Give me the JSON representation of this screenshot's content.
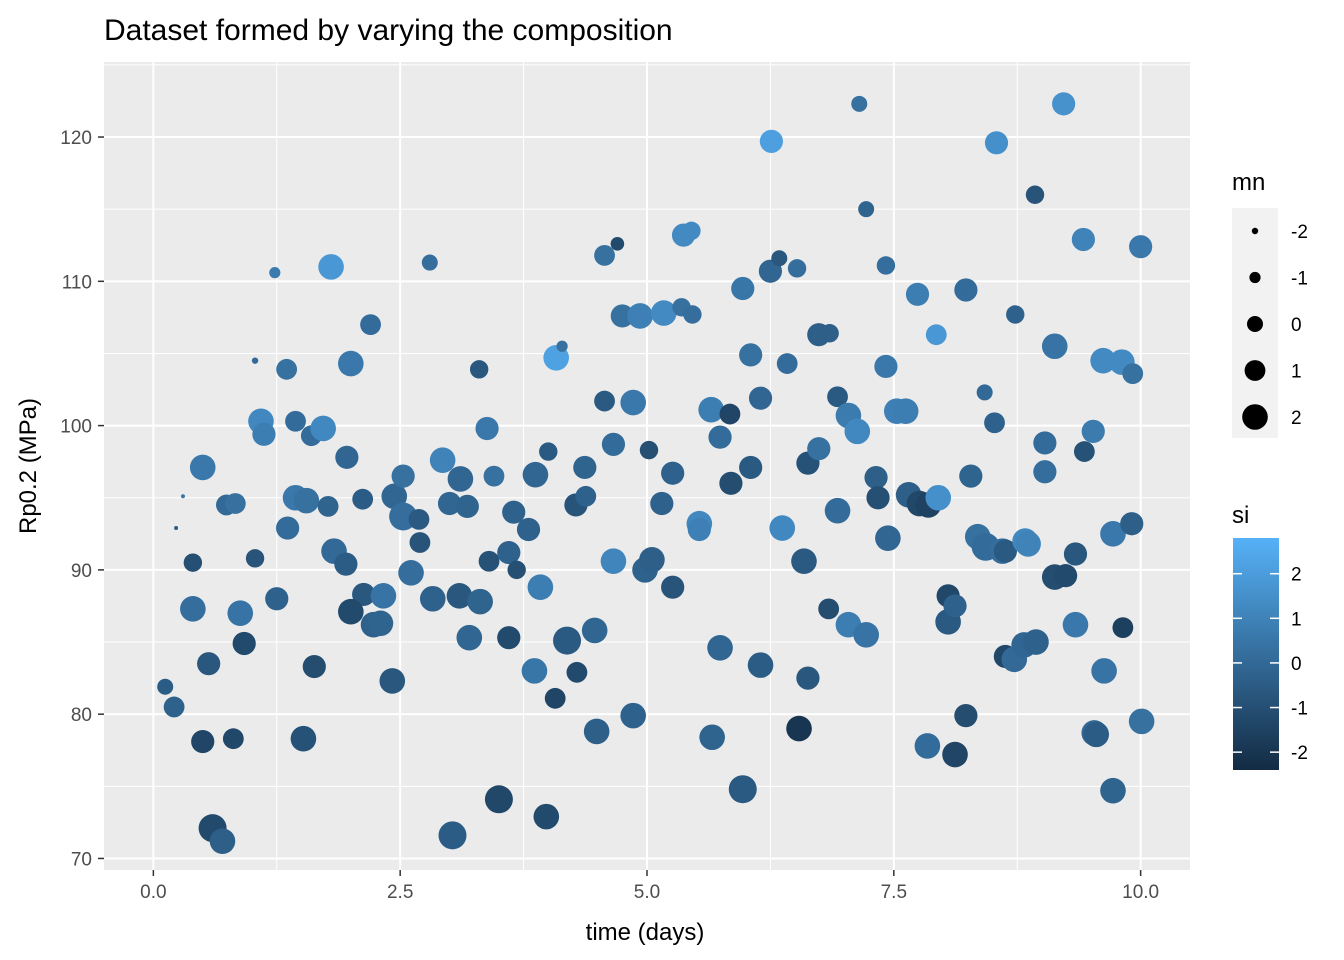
{
  "chart_data": {
    "type": "scatter",
    "title": "Dataset formed by varying the composition",
    "xlabel": "time (days)",
    "ylabel": "Rp0.2 (MPa)",
    "xlim": [
      -0.5,
      10.5
    ],
    "ylim": [
      69.2,
      125.2
    ],
    "x_ticks": [
      0.0,
      2.5,
      5.0,
      7.5,
      10.0
    ],
    "x_tick_labels": [
      "0.0",
      "2.5",
      "5.0",
      "7.5",
      "10.0"
    ],
    "y_ticks": [
      70,
      80,
      90,
      100,
      110,
      120
    ],
    "y_tick_labels": [
      "70",
      "80",
      "90",
      "100",
      "110",
      "120"
    ],
    "grid": true,
    "legend_position": "right",
    "size_legend": {
      "title": "mn",
      "values": [
        -2,
        -1,
        0,
        1,
        2
      ],
      "labels": [
        "-2",
        "-1",
        "0",
        "1",
        "2"
      ]
    },
    "color_legend": {
      "title": "si",
      "range": [
        -2.4,
        2.8
      ],
      "low_color": "#132b43",
      "high_color": "#56b1f7",
      "ticks": [
        2,
        1,
        0,
        -1,
        -2
      ],
      "tick_labels": [
        "2",
        "1",
        "0",
        "-1",
        "-2"
      ]
    },
    "points": [
      {
        "x": 0.12,
        "y": 81.9,
        "mn": 0.0,
        "si": -0.5
      },
      {
        "x": 0.21,
        "y": 80.5,
        "mn": 1.0,
        "si": -0.3
      },
      {
        "x": 0.5,
        "y": 78.1,
        "mn": 1.5,
        "si": -1.4
      },
      {
        "x": 0.81,
        "y": 78.3,
        "mn": 1.0,
        "si": -1.3
      },
      {
        "x": 0.6,
        "y": 72.1,
        "mn": 2.5,
        "si": -1.2
      },
      {
        "x": 0.7,
        "y": 71.2,
        "mn": 2.0,
        "si": -0.4
      },
      {
        "x": 0.56,
        "y": 83.5,
        "mn": 1.5,
        "si": -0.7
      },
      {
        "x": 0.92,
        "y": 84.9,
        "mn": 1.5,
        "si": -1.2
      },
      {
        "x": 0.4,
        "y": 87.3,
        "mn": 2.0,
        "si": 0.2
      },
      {
        "x": 0.88,
        "y": 87.0,
        "mn": 2.0,
        "si": 0.4
      },
      {
        "x": 0.4,
        "y": 90.5,
        "mn": 0.5,
        "si": -1.0
      },
      {
        "x": 1.03,
        "y": 90.8,
        "mn": 0.5,
        "si": -0.8
      },
      {
        "x": 0.23,
        "y": 92.9,
        "mn": -2.5,
        "si": -0.5
      },
      {
        "x": 0.3,
        "y": 95.1,
        "mn": -3.0,
        "si": 0.5
      },
      {
        "x": 0.5,
        "y": 97.1,
        "mn": 2.0,
        "si": 0.6
      },
      {
        "x": 0.74,
        "y": 94.5,
        "mn": 1.0,
        "si": 0.0
      },
      {
        "x": 0.83,
        "y": 94.6,
        "mn": 1.0,
        "si": 0.3
      },
      {
        "x": 1.03,
        "y": 104.5,
        "mn": -2.0,
        "si": 0.0
      },
      {
        "x": 1.23,
        "y": 110.6,
        "mn": -1.0,
        "si": 0.7
      },
      {
        "x": 1.09,
        "y": 100.3,
        "mn": 2.0,
        "si": 1.2
      },
      {
        "x": 1.12,
        "y": 99.4,
        "mn": 1.5,
        "si": 0.8
      },
      {
        "x": 1.35,
        "y": 103.9,
        "mn": 1.0,
        "si": 0.3
      },
      {
        "x": 1.44,
        "y": 100.3,
        "mn": 1.0,
        "si": 0.1
      },
      {
        "x": 1.6,
        "y": 99.3,
        "mn": 1.0,
        "si": 0.1
      },
      {
        "x": 1.72,
        "y": 99.8,
        "mn": 2.0,
        "si": 1.2
      },
      {
        "x": 1.8,
        "y": 111.0,
        "mn": 2.0,
        "si": 1.8
      },
      {
        "x": 1.36,
        "y": 92.9,
        "mn": 1.5,
        "si": 0.1
      },
      {
        "x": 1.44,
        "y": 95.0,
        "mn": 2.0,
        "si": 0.6
      },
      {
        "x": 1.55,
        "y": 94.8,
        "mn": 2.0,
        "si": 0.3
      },
      {
        "x": 1.77,
        "y": 94.4,
        "mn": 1.0,
        "si": -0.2
      },
      {
        "x": 1.25,
        "y": 88.0,
        "mn": 1.5,
        "si": -0.3
      },
      {
        "x": 1.63,
        "y": 83.3,
        "mn": 1.5,
        "si": -1.1
      },
      {
        "x": 1.52,
        "y": 78.3,
        "mn": 2.0,
        "si": -0.9
      },
      {
        "x": 1.96,
        "y": 97.8,
        "mn": 1.5,
        "si": -0.1
      },
      {
        "x": 2.0,
        "y": 104.3,
        "mn": 2.0,
        "si": 0.6
      },
      {
        "x": 2.2,
        "y": 107.0,
        "mn": 1.0,
        "si": 0.1
      },
      {
        "x": 1.83,
        "y": 91.3,
        "mn": 2.0,
        "si": 0.0
      },
      {
        "x": 1.95,
        "y": 90.4,
        "mn": 1.5,
        "si": -0.5
      },
      {
        "x": 2.12,
        "y": 94.9,
        "mn": 1.0,
        "si": -0.5
      },
      {
        "x": 2.13,
        "y": 88.3,
        "mn": 1.5,
        "si": -0.7
      },
      {
        "x": 2.0,
        "y": 87.1,
        "mn": 2.0,
        "si": -1.2
      },
      {
        "x": 2.23,
        "y": 86.2,
        "mn": 2.0,
        "si": -0.3
      },
      {
        "x": 2.3,
        "y": 86.3,
        "mn": 2.0,
        "si": -0.2
      },
      {
        "x": 2.33,
        "y": 88.2,
        "mn": 2.0,
        "si": 0.4
      },
      {
        "x": 2.44,
        "y": 95.1,
        "mn": 2.0,
        "si": -0.1
      },
      {
        "x": 2.53,
        "y": 96.5,
        "mn": 1.5,
        "si": 0.3
      },
      {
        "x": 2.53,
        "y": 93.7,
        "mn": 2.5,
        "si": 0.2
      },
      {
        "x": 2.69,
        "y": 93.5,
        "mn": 1.0,
        "si": -0.6
      },
      {
        "x": 2.7,
        "y": 91.9,
        "mn": 1.0,
        "si": -0.8
      },
      {
        "x": 2.61,
        "y": 89.8,
        "mn": 2.0,
        "si": 0.2
      },
      {
        "x": 2.83,
        "y": 88.0,
        "mn": 2.0,
        "si": -0.3
      },
      {
        "x": 2.42,
        "y": 82.3,
        "mn": 2.0,
        "si": -0.7
      },
      {
        "x": 2.8,
        "y": 111.3,
        "mn": 0.0,
        "si": 0.2
      },
      {
        "x": 2.93,
        "y": 97.6,
        "mn": 2.0,
        "si": 1.0
      },
      {
        "x": 3.0,
        "y": 94.6,
        "mn": 1.5,
        "si": -0.1
      },
      {
        "x": 3.11,
        "y": 96.3,
        "mn": 2.0,
        "si": -0.1
      },
      {
        "x": 3.18,
        "y": 94.4,
        "mn": 1.5,
        "si": -0.2
      },
      {
        "x": 3.3,
        "y": 103.9,
        "mn": 0.5,
        "si": -0.7
      },
      {
        "x": 3.38,
        "y": 99.8,
        "mn": 1.5,
        "si": 0.6
      },
      {
        "x": 3.1,
        "y": 88.2,
        "mn": 2.0,
        "si": -0.7
      },
      {
        "x": 3.31,
        "y": 87.8,
        "mn": 2.0,
        "si": -0.2
      },
      {
        "x": 3.2,
        "y": 85.3,
        "mn": 2.0,
        "si": -0.1
      },
      {
        "x": 3.03,
        "y": 71.6,
        "mn": 2.5,
        "si": -0.5
      },
      {
        "x": 3.4,
        "y": 90.6,
        "mn": 1.0,
        "si": -0.9
      },
      {
        "x": 3.45,
        "y": 96.5,
        "mn": 1.0,
        "si": 0.3
      },
      {
        "x": 3.6,
        "y": 91.2,
        "mn": 1.5,
        "si": -0.3
      },
      {
        "x": 3.65,
        "y": 94.0,
        "mn": 1.5,
        "si": -0.3
      },
      {
        "x": 3.68,
        "y": 90.0,
        "mn": 0.5,
        "si": -1.0
      },
      {
        "x": 3.8,
        "y": 92.8,
        "mn": 1.5,
        "si": -0.3
      },
      {
        "x": 3.87,
        "y": 96.6,
        "mn": 2.0,
        "si": -0.1
      },
      {
        "x": 3.92,
        "y": 88.8,
        "mn": 2.0,
        "si": 0.8
      },
      {
        "x": 3.6,
        "y": 85.3,
        "mn": 1.5,
        "si": -1.2
      },
      {
        "x": 3.86,
        "y": 83.0,
        "mn": 2.0,
        "si": 0.5
      },
      {
        "x": 3.5,
        "y": 74.1,
        "mn": 2.5,
        "si": -1.3
      },
      {
        "x": 4.0,
        "y": 98.2,
        "mn": 0.5,
        "si": -0.6
      },
      {
        "x": 4.08,
        "y": 104.7,
        "mn": 2.0,
        "si": 2.2
      },
      {
        "x": 4.14,
        "y": 105.5,
        "mn": -1.0,
        "si": 0.3
      },
      {
        "x": 4.07,
        "y": 81.1,
        "mn": 1.0,
        "si": -1.4
      },
      {
        "x": 3.98,
        "y": 72.9,
        "mn": 2.0,
        "si": -1.2
      },
      {
        "x": 4.19,
        "y": 85.1,
        "mn": 2.5,
        "si": -0.6
      },
      {
        "x": 4.29,
        "y": 82.9,
        "mn": 1.0,
        "si": -1.2
      },
      {
        "x": 4.28,
        "y": 94.5,
        "mn": 1.5,
        "si": -0.8
      },
      {
        "x": 4.37,
        "y": 97.1,
        "mn": 1.5,
        "si": -0.2
      },
      {
        "x": 4.38,
        "y": 95.1,
        "mn": 1.0,
        "si": -0.3
      },
      {
        "x": 4.47,
        "y": 85.8,
        "mn": 2.0,
        "si": -0.1
      },
      {
        "x": 4.49,
        "y": 78.8,
        "mn": 2.0,
        "si": -0.4
      },
      {
        "x": 4.57,
        "y": 101.7,
        "mn": 1.0,
        "si": -0.6
      },
      {
        "x": 4.57,
        "y": 111.8,
        "mn": 1.0,
        "si": 0.3
      },
      {
        "x": 4.7,
        "y": 112.6,
        "mn": -0.5,
        "si": -1.2
      },
      {
        "x": 4.66,
        "y": 98.7,
        "mn": 1.5,
        "si": 0.1
      },
      {
        "x": 4.75,
        "y": 107.6,
        "mn": 1.5,
        "si": 0.3
      },
      {
        "x": 4.86,
        "y": 101.6,
        "mn": 2.0,
        "si": 0.6
      },
      {
        "x": 4.66,
        "y": 90.6,
        "mn": 2.0,
        "si": 1.1
      },
      {
        "x": 4.86,
        "y": 79.9,
        "mn": 2.0,
        "si": -0.3
      },
      {
        "x": 4.93,
        "y": 107.6,
        "mn": 2.0,
        "si": 0.9
      },
      {
        "x": 5.02,
        "y": 98.3,
        "mn": 0.5,
        "si": -1.0
      },
      {
        "x": 4.98,
        "y": 90.0,
        "mn": 2.0,
        "si": -0.3
      },
      {
        "x": 5.05,
        "y": 90.7,
        "mn": 2.0,
        "si": -0.4
      },
      {
        "x": 5.17,
        "y": 107.8,
        "mn": 2.0,
        "si": 1.3
      },
      {
        "x": 5.15,
        "y": 94.6,
        "mn": 1.5,
        "si": -0.3
      },
      {
        "x": 5.26,
        "y": 96.7,
        "mn": 1.5,
        "si": -0.3
      },
      {
        "x": 5.26,
        "y": 88.8,
        "mn": 1.5,
        "si": -0.8
      },
      {
        "x": 5.35,
        "y": 108.2,
        "mn": 0.5,
        "si": 0.3
      },
      {
        "x": 5.37,
        "y": 113.2,
        "mn": 1.5,
        "si": 1.3
      },
      {
        "x": 5.45,
        "y": 113.5,
        "mn": 0.5,
        "si": 1.3
      },
      {
        "x": 5.46,
        "y": 107.7,
        "mn": 0.5,
        "si": 0.2
      },
      {
        "x": 5.53,
        "y": 93.2,
        "mn": 2.0,
        "si": 1.2
      },
      {
        "x": 5.53,
        "y": 92.8,
        "mn": 1.5,
        "si": 0.9
      },
      {
        "x": 5.65,
        "y": 101.1,
        "mn": 2.0,
        "si": 0.8
      },
      {
        "x": 5.74,
        "y": 99.2,
        "mn": 1.5,
        "si": 0.1
      },
      {
        "x": 5.84,
        "y": 100.8,
        "mn": 1.0,
        "si": -1.4
      },
      {
        "x": 5.85,
        "y": 96.0,
        "mn": 1.5,
        "si": -1.1
      },
      {
        "x": 5.74,
        "y": 84.6,
        "mn": 2.0,
        "si": -0.1
      },
      {
        "x": 5.66,
        "y": 78.4,
        "mn": 2.0,
        "si": -0.2
      },
      {
        "x": 5.97,
        "y": 109.5,
        "mn": 1.5,
        "si": 0.5
      },
      {
        "x": 6.05,
        "y": 104.9,
        "mn": 1.5,
        "si": 0.3
      },
      {
        "x": 6.05,
        "y": 97.1,
        "mn": 1.5,
        "si": -0.6
      },
      {
        "x": 6.15,
        "y": 101.9,
        "mn": 1.5,
        "si": -0.1
      },
      {
        "x": 6.15,
        "y": 83.4,
        "mn": 2.0,
        "si": -0.5
      },
      {
        "x": 5.97,
        "y": 74.8,
        "mn": 2.5,
        "si": -0.6
      },
      {
        "x": 6.25,
        "y": 110.7,
        "mn": 1.5,
        "si": -0.1
      },
      {
        "x": 6.26,
        "y": 119.7,
        "mn": 1.5,
        "si": 2.1
      },
      {
        "x": 6.34,
        "y": 111.6,
        "mn": 0.0,
        "si": -0.7
      },
      {
        "x": 6.37,
        "y": 92.9,
        "mn": 2.0,
        "si": 1.2
      },
      {
        "x": 6.42,
        "y": 104.3,
        "mn": 1.0,
        "si": 0.1
      },
      {
        "x": 6.52,
        "y": 110.9,
        "mn": 0.5,
        "si": 0.2
      },
      {
        "x": 6.54,
        "y": 79.0,
        "mn": 2.0,
        "si": -2.0
      },
      {
        "x": 6.59,
        "y": 90.6,
        "mn": 2.0,
        "si": -0.6
      },
      {
        "x": 6.63,
        "y": 97.4,
        "mn": 1.5,
        "si": -0.9
      },
      {
        "x": 6.63,
        "y": 82.5,
        "mn": 1.5,
        "si": -0.7
      },
      {
        "x": 6.74,
        "y": 106.3,
        "mn": 1.5,
        "si": -0.4
      },
      {
        "x": 6.85,
        "y": 106.4,
        "mn": 0.5,
        "si": -0.4
      },
      {
        "x": 6.84,
        "y": 87.3,
        "mn": 1.0,
        "si": -1.1
      },
      {
        "x": 6.74,
        "y": 98.4,
        "mn": 1.5,
        "si": 0.3
      },
      {
        "x": 6.93,
        "y": 102.0,
        "mn": 1.0,
        "si": -0.6
      },
      {
        "x": 6.93,
        "y": 94.1,
        "mn": 2.0,
        "si": 0.1
      },
      {
        "x": 7.04,
        "y": 100.7,
        "mn": 2.0,
        "si": 0.7
      },
      {
        "x": 7.04,
        "y": 86.2,
        "mn": 2.0,
        "si": 0.8
      },
      {
        "x": 7.13,
        "y": 99.6,
        "mn": 2.0,
        "si": 1.2
      },
      {
        "x": 7.15,
        "y": 122.3,
        "mn": 0.0,
        "si": 0.3
      },
      {
        "x": 7.22,
        "y": 115.0,
        "mn": 0.0,
        "si": -0.2
      },
      {
        "x": 7.22,
        "y": 85.5,
        "mn": 2.0,
        "si": 0.4
      },
      {
        "x": 7.32,
        "y": 96.4,
        "mn": 1.5,
        "si": -0.4
      },
      {
        "x": 7.34,
        "y": 95.0,
        "mn": 1.5,
        "si": -1.0
      },
      {
        "x": 7.42,
        "y": 111.1,
        "mn": 0.5,
        "si": 0.2
      },
      {
        "x": 7.42,
        "y": 104.1,
        "mn": 1.5,
        "si": 0.6
      },
      {
        "x": 7.44,
        "y": 92.2,
        "mn": 2.0,
        "si": -0.1
      },
      {
        "x": 7.53,
        "y": 101.0,
        "mn": 2.0,
        "si": 0.9
      },
      {
        "x": 7.62,
        "y": 101.0,
        "mn": 2.0,
        "si": 0.8
      },
      {
        "x": 7.65,
        "y": 95.2,
        "mn": 2.0,
        "si": -0.4
      },
      {
        "x": 7.74,
        "y": 109.1,
        "mn": 1.5,
        "si": 0.8
      },
      {
        "x": 7.76,
        "y": 94.6,
        "mn": 2.0,
        "si": -1.3
      },
      {
        "x": 7.85,
        "y": 94.5,
        "mn": 2.0,
        "si": -1.5
      },
      {
        "x": 7.84,
        "y": 77.8,
        "mn": 2.0,
        "si": 0.1
      },
      {
        "x": 7.93,
        "y": 106.3,
        "mn": 1.0,
        "si": 1.8
      },
      {
        "x": 7.95,
        "y": 95.0,
        "mn": 2.0,
        "si": 1.5
      },
      {
        "x": 8.05,
        "y": 88.2,
        "mn": 1.5,
        "si": -1.3
      },
      {
        "x": 8.05,
        "y": 86.4,
        "mn": 2.0,
        "si": -0.6
      },
      {
        "x": 8.12,
        "y": 87.5,
        "mn": 1.5,
        "si": -0.3
      },
      {
        "x": 8.12,
        "y": 77.2,
        "mn": 2.0,
        "si": -1.4
      },
      {
        "x": 8.23,
        "y": 109.4,
        "mn": 1.5,
        "si": 0.1
      },
      {
        "x": 8.23,
        "y": 79.9,
        "mn": 1.5,
        "si": -1.1
      },
      {
        "x": 8.28,
        "y": 96.5,
        "mn": 1.5,
        "si": -0.2
      },
      {
        "x": 8.35,
        "y": 92.3,
        "mn": 2.0,
        "si": 0.3
      },
      {
        "x": 8.43,
        "y": 91.6,
        "mn": 2.5,
        "si": 0.1
      },
      {
        "x": 8.42,
        "y": 102.3,
        "mn": 0.0,
        "si": 0.0
      },
      {
        "x": 8.52,
        "y": 100.2,
        "mn": 1.0,
        "si": -0.3
      },
      {
        "x": 8.54,
        "y": 119.6,
        "mn": 1.5,
        "si": 1.5
      },
      {
        "x": 8.6,
        "y": 91.3,
        "mn": 2.0,
        "si": 0.2
      },
      {
        "x": 8.63,
        "y": 91.3,
        "mn": 1.5,
        "si": -0.6
      },
      {
        "x": 8.63,
        "y": 84.0,
        "mn": 1.5,
        "si": -1.3
      },
      {
        "x": 8.72,
        "y": 83.8,
        "mn": 2.0,
        "si": 0.0
      },
      {
        "x": 8.73,
        "y": 107.7,
        "mn": 0.5,
        "si": -0.3
      },
      {
        "x": 8.83,
        "y": 92.0,
        "mn": 2.0,
        "si": 1.2
      },
      {
        "x": 8.86,
        "y": 91.8,
        "mn": 2.0,
        "si": 1.0
      },
      {
        "x": 8.82,
        "y": 84.8,
        "mn": 2.0,
        "si": -0.1
      },
      {
        "x": 8.94,
        "y": 85.0,
        "mn": 2.0,
        "si": -0.3
      },
      {
        "x": 8.93,
        "y": 116.0,
        "mn": 0.5,
        "si": -0.8
      },
      {
        "x": 9.03,
        "y": 98.8,
        "mn": 1.5,
        "si": 0.1
      },
      {
        "x": 9.03,
        "y": 96.8,
        "mn": 1.5,
        "si": 0.2
      },
      {
        "x": 9.13,
        "y": 105.5,
        "mn": 2.0,
        "si": 0.4
      },
      {
        "x": 9.13,
        "y": 89.5,
        "mn": 2.0,
        "si": -1.1
      },
      {
        "x": 9.22,
        "y": 122.3,
        "mn": 1.5,
        "si": 1.6
      },
      {
        "x": 9.24,
        "y": 89.6,
        "mn": 1.5,
        "si": -1.2
      },
      {
        "x": 9.34,
        "y": 91.1,
        "mn": 1.5,
        "si": -0.7
      },
      {
        "x": 9.34,
        "y": 86.2,
        "mn": 2.0,
        "si": 0.6
      },
      {
        "x": 9.42,
        "y": 112.9,
        "mn": 1.5,
        "si": 1.0
      },
      {
        "x": 9.43,
        "y": 98.2,
        "mn": 1.0,
        "si": -0.9
      },
      {
        "x": 9.52,
        "y": 99.6,
        "mn": 1.5,
        "si": 0.7
      },
      {
        "x": 9.53,
        "y": 78.7,
        "mn": 2.0,
        "si": 0.0
      },
      {
        "x": 9.55,
        "y": 78.6,
        "mn": 2.0,
        "si": -0.5
      },
      {
        "x": 9.62,
        "y": 104.5,
        "mn": 2.0,
        "si": 1.3
      },
      {
        "x": 9.63,
        "y": 83.0,
        "mn": 2.0,
        "si": 0.4
      },
      {
        "x": 9.72,
        "y": 92.5,
        "mn": 2.0,
        "si": 0.6
      },
      {
        "x": 9.72,
        "y": 74.7,
        "mn": 2.0,
        "si": -0.2
      },
      {
        "x": 9.81,
        "y": 104.4,
        "mn": 2.0,
        "si": 1.3
      },
      {
        "x": 9.82,
        "y": 86.0,
        "mn": 1.0,
        "si": -1.6
      },
      {
        "x": 9.92,
        "y": 103.6,
        "mn": 1.0,
        "si": 0.3
      },
      {
        "x": 9.91,
        "y": 93.2,
        "mn": 1.5,
        "si": -0.4
      },
      {
        "x": 10.0,
        "y": 112.4,
        "mn": 1.5,
        "si": 0.6
      },
      {
        "x": 10.01,
        "y": 79.5,
        "mn": 2.0,
        "si": 0.3
      }
    ]
  }
}
